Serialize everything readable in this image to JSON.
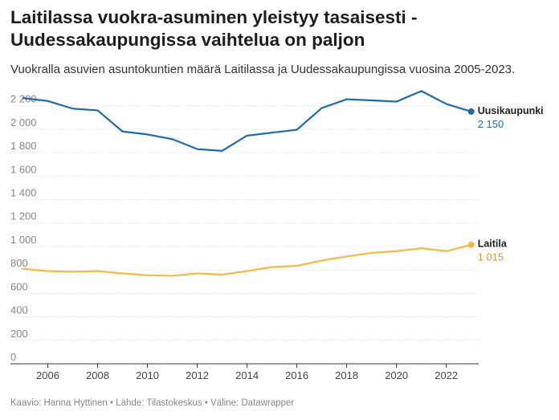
{
  "chart_data": {
    "type": "line",
    "title": "Laitilassa vuokra-asuminen yleistyy tasaisesti - Uudessakaupungissa vaihtelua on paljon",
    "subtitle": "Vuokralla asuvien asuntokuntien määrä Laitilassa ja Uudessakaupungissa vuosina 2005-2023.",
    "x": [
      2005,
      2006,
      2007,
      2008,
      2009,
      2010,
      2011,
      2012,
      2013,
      2014,
      2015,
      2016,
      2017,
      2018,
      2019,
      2020,
      2021,
      2022,
      2023
    ],
    "x_ticks": [
      2006,
      2008,
      2010,
      2012,
      2014,
      2016,
      2018,
      2020,
      2022
    ],
    "x_tick_labels": [
      "2006",
      "2008",
      "2010",
      "2012",
      "2014",
      "2016",
      "2018",
      "2020",
      "2022"
    ],
    "xlim": [
      2004.5,
      2023.3
    ],
    "ylim": [
      0,
      2300
    ],
    "y_ticks": [
      0,
      200,
      400,
      600,
      800,
      1000,
      1200,
      1400,
      1600,
      1800,
      2000,
      2200
    ],
    "y_tick_labels": [
      "0",
      "200",
      "400",
      "600",
      "800",
      "1 000",
      "1 200",
      "1 400",
      "1 600",
      "1 800",
      "2 000",
      "2 200"
    ],
    "grid": "horizontal",
    "series": [
      {
        "name": "Uusikaupunki",
        "color": "#1f6aae",
        "end_label": "2 150",
        "values": [
          2265,
          2240,
          2175,
          2160,
          1980,
          1955,
          1915,
          1830,
          1815,
          1945,
          1970,
          1995,
          2180,
          2255,
          2245,
          2235,
          2325,
          2215,
          2150
        ]
      },
      {
        "name": "Laitila",
        "color": "#f9b840",
        "value_color": "#d69a2a",
        "end_label": "1 015",
        "values": [
          810,
          790,
          785,
          790,
          770,
          755,
          750,
          770,
          760,
          790,
          825,
          835,
          880,
          915,
          945,
          960,
          985,
          960,
          1015
        ]
      }
    ]
  },
  "footer": {
    "notes": "Kaavio: Hanna Hyttinen • Lähde: Tilastokeskus • Väline: Datawrapper"
  }
}
